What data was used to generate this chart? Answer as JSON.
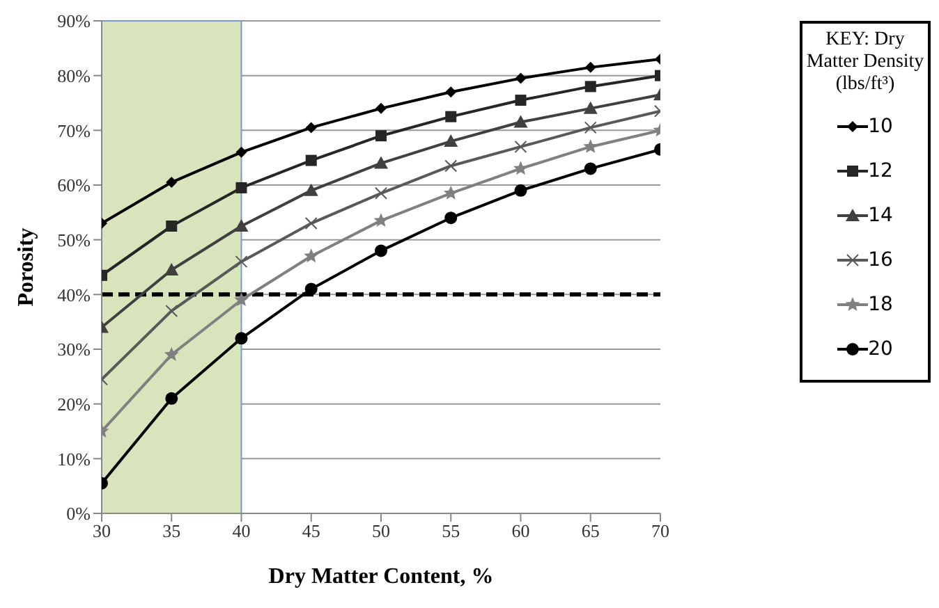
{
  "chart_data": {
    "type": "line",
    "xlabel": "Dry Matter Content, %",
    "ylabel": "Porosity",
    "legend_title": "KEY: Dry Matter Density (lbs/ft³)",
    "x": [
      30,
      35,
      40,
      45,
      50,
      55,
      60,
      65,
      70
    ],
    "series": [
      {
        "name": "10",
        "color": "#000000",
        "marker": "diamond",
        "values": [
          53,
          60.5,
          66,
          70.5,
          74,
          77,
          79.5,
          81.5,
          83
        ]
      },
      {
        "name": "12",
        "color": "#262626",
        "marker": "square",
        "values": [
          43.5,
          52.5,
          59.5,
          64.5,
          69,
          72.5,
          75.5,
          78,
          80
        ]
      },
      {
        "name": "14",
        "color": "#404040",
        "marker": "triangle",
        "values": [
          34,
          44.5,
          52.5,
          59,
          64,
          68,
          71.5,
          74,
          76.5
        ]
      },
      {
        "name": "16",
        "color": "#595959",
        "marker": "cross",
        "values": [
          24.5,
          37,
          46,
          53,
          58.5,
          63.5,
          67,
          70.5,
          73.5
        ]
      },
      {
        "name": "18",
        "color": "#808080",
        "marker": "star",
        "values": [
          15,
          29,
          39,
          47,
          53.5,
          58.5,
          63,
          67,
          70
        ]
      },
      {
        "name": "20",
        "color": "#000000",
        "marker": "circle",
        "values": [
          5.5,
          21,
          32,
          41,
          48,
          54,
          59,
          63,
          66.5
        ]
      }
    ],
    "xlim": [
      30,
      70
    ],
    "xticks": [
      30,
      35,
      40,
      45,
      50,
      55,
      60,
      65,
      70
    ],
    "ylim": [
      0,
      90
    ],
    "yticks": [
      {
        "value": 0,
        "label": "0%"
      },
      {
        "value": 10,
        "label": "10%"
      },
      {
        "value": 20,
        "label": "20%"
      },
      {
        "value": 30,
        "label": "30%"
      },
      {
        "value": 40,
        "label": "40%"
      },
      {
        "value": 50,
        "label": "50%"
      },
      {
        "value": 60,
        "label": "60%"
      },
      {
        "value": 70,
        "label": "70%"
      },
      {
        "value": 80,
        "label": "80%"
      },
      {
        "value": 90,
        "label": "90%"
      }
    ],
    "ref_lines": [
      {
        "axis": "y",
        "value": 40,
        "label": null,
        "color": "#000000",
        "line_style": "dashed"
      }
    ],
    "bands": [
      {
        "axis": "x",
        "from": 30,
        "to": 40,
        "label": null,
        "color": "#d7e4bc"
      }
    ],
    "grid": "y",
    "legend": "right",
    "line_style": "solid"
  }
}
